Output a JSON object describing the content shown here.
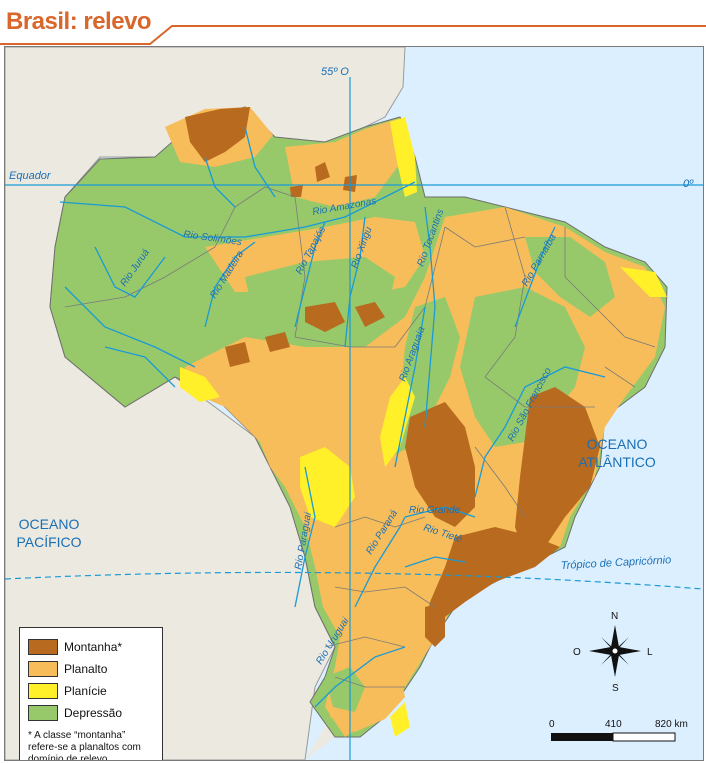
{
  "title": "Brasil: relevo",
  "grid": {
    "meridian": "55º O",
    "equator_left": "Equador",
    "equator_right": "0º",
    "tropic": "Trópico de Capricórnio"
  },
  "oceans": {
    "atlantic_line1": "OCEANO",
    "atlantic_line2": "ATLÂNTICO",
    "pacific_line1": "OCEANO",
    "pacific_line2": "PACÍFICO"
  },
  "rivers": [
    "Rio Amazonas",
    "Rio Solimões",
    "Rio Juruá",
    "Rio Madeira",
    "Rio Tapajós",
    "Rio Xingu",
    "Rio Tocantins",
    "Rio Araguaia",
    "Rio Parnaíba",
    "Rio São Francisco",
    "Rio Grande",
    "Rio Paraná",
    "Rio Tietê",
    "Rio Paraguai",
    "Rio Uruguai"
  ],
  "legend": {
    "items": [
      {
        "label": "Montanha*",
        "color": "#b86a1e"
      },
      {
        "label": "Planalto",
        "color": "#f7bd5a"
      },
      {
        "label": "Planície",
        "color": "#fff02a"
      },
      {
        "label": "Depressão",
        "color": "#97c96b"
      }
    ],
    "note": "* A classe “montanha” refere-se a planaltos com domínio de relevo montanhoso e de serras."
  },
  "compass": {
    "n": "N",
    "s": "S",
    "l": "L",
    "o": "O"
  },
  "scale": {
    "t0": "0",
    "t1": "410",
    "t2": "820 km"
  },
  "colors": {
    "accent": "#d9662b",
    "ocean": "#dcefff",
    "land_outside": "#ece9e1",
    "river": "#1a9ad6",
    "grid": "#1a9ad6"
  }
}
